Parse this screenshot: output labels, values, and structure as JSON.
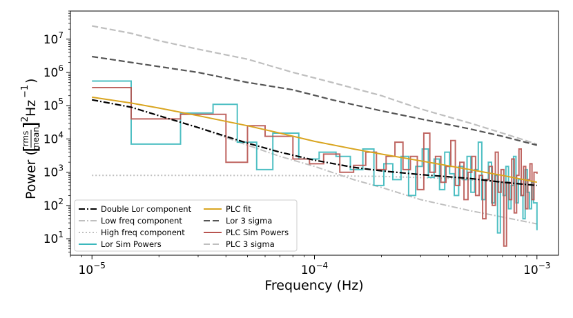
{
  "chart_data": {
    "type": "line",
    "xlabel": "Frequency (Hz)",
    "ylabel": {
      "prefix": "Power (",
      "frac_num": "rms",
      "frac_den": "mean",
      "sup": "2",
      "suffix_unit": "Hz",
      "suffix_exp": "−1",
      "close": ")"
    },
    "x_scale": "log",
    "y_scale": "log",
    "xlim": [
      8e-06,
      0.00125
    ],
    "ylim": [
      3.2,
      70000000.0
    ],
    "grid": false,
    "legend_position": "lower-left",
    "x_ticks": [
      {
        "value": 1e-05,
        "base": "10",
        "exp": "−5"
      },
      {
        "value": 0.0001,
        "base": "10",
        "exp": "−4"
      },
      {
        "value": 0.001,
        "base": "10",
        "exp": "−3"
      }
    ],
    "y_ticks": [
      {
        "value": 10,
        "base": "10",
        "exp": "1"
      },
      {
        "value": 100,
        "base": "10",
        "exp": "2"
      },
      {
        "value": 1000,
        "base": "10",
        "exp": "3"
      },
      {
        "value": 10000,
        "base": "10",
        "exp": "4"
      },
      {
        "value": 100000,
        "base": "10",
        "exp": "5"
      },
      {
        "value": 1000000,
        "base": "10",
        "exp": "6"
      },
      {
        "value": 10000000,
        "base": "10",
        "exp": "7"
      }
    ],
    "legend": [
      {
        "label": "Double Lor component",
        "color": "#000000",
        "style": "dashdot"
      },
      {
        "label": "Low freq component",
        "color": "#bfbfbf",
        "style": "dashdot"
      },
      {
        "label": "High freq component",
        "color": "#bfbfbf",
        "style": "dotted"
      },
      {
        "label": "Lor Sim Powers",
        "color": "#3bb8bd",
        "style": "solid"
      },
      {
        "label": "PLC fit",
        "color": "#d9a520",
        "style": "solid"
      },
      {
        "label": "Lor 3 sigma",
        "color": "#555555",
        "style": "dashed"
      },
      {
        "label": "PLC Sim Powers",
        "color": "#b85450",
        "style": "solid"
      },
      {
        "label": "PLC 3 sigma",
        "color": "#bfbfbf",
        "style": "dashed"
      }
    ],
    "series": [
      {
        "name": "PLC 3 sigma",
        "color": "#bfbfbf",
        "style": "dashed",
        "width": 2.2,
        "kind": "line",
        "x": [
          1e-05,
          1.5e-05,
          2e-05,
          3e-05,
          5e-05,
          8e-05,
          0.00012,
          0.0002,
          0.0003,
          0.0005,
          0.0007,
          0.001
        ],
        "y": [
          25000000,
          15000000,
          9000000,
          5000000,
          2500000,
          1000000,
          500000,
          200000,
          80000,
          30000,
          15000,
          7000
        ]
      },
      {
        "name": "Lor 3 sigma",
        "color": "#555555",
        "style": "dashed",
        "width": 2.2,
        "kind": "line",
        "x": [
          1e-05,
          1.5e-05,
          2e-05,
          3e-05,
          5e-05,
          8e-05,
          0.00012,
          0.0002,
          0.0003,
          0.0005,
          0.0007,
          0.001
        ],
        "y": [
          3000000,
          2000000,
          1500000,
          1000000,
          500000,
          300000,
          150000,
          70000,
          40000,
          20000,
          12000,
          6500
        ]
      },
      {
        "name": "Low freq component",
        "color": "#bfbfbf",
        "style": "dashdot",
        "width": 2,
        "kind": "line",
        "x": [
          1e-05,
          1.5e-05,
          2e-05,
          3e-05,
          5e-05,
          7e-05,
          0.0001,
          0.00015,
          0.0002,
          0.0003,
          0.0005,
          0.0007,
          0.001
        ],
        "y": [
          150000,
          90000,
          50000,
          22000,
          6500,
          3000,
          1500,
          600,
          350,
          150,
          70,
          45,
          28
        ]
      },
      {
        "name": "High freq component",
        "color": "#bfbfbf",
        "style": "dotted",
        "width": 2,
        "kind": "line",
        "x": [
          1e-05,
          3e-05,
          0.0001,
          0.0002,
          0.0004,
          0.0007,
          0.001
        ],
        "y": [
          800,
          800,
          790,
          750,
          650,
          520,
          420
        ]
      },
      {
        "name": "Lor Sim Powers",
        "color": "#3bb8bd",
        "style": "solid",
        "width": 2,
        "kind": "step",
        "x": [
          1e-05,
          1.5e-05,
          2.5e-05,
          3.5e-05,
          4.5e-05,
          5.5e-05,
          6.5e-05,
          8.5e-05,
          0.000105,
          0.000125,
          0.000145,
          0.000165,
          0.000185,
          0.000205,
          0.000225,
          0.000245,
          0.000265,
          0.000285,
          0.000305,
          0.000325,
          0.000345,
          0.000365,
          0.000385,
          0.000405,
          0.000425,
          0.000445,
          0.000465,
          0.000485,
          0.000505,
          0.000525,
          0.000545,
          0.000565,
          0.000585,
          0.000605,
          0.000625,
          0.000645,
          0.000665,
          0.000685,
          0.000705,
          0.000725,
          0.000745,
          0.000765,
          0.000785,
          0.000805,
          0.000825,
          0.000845,
          0.000865,
          0.000885,
          0.000905,
          0.000925,
          0.000945,
          0.000965,
          0.001
        ],
        "y": [
          550000,
          7000,
          60000,
          110000,
          8000,
          1200,
          15000,
          2500,
          4000,
          3000,
          1200,
          5000,
          400,
          1800,
          600,
          3000,
          200,
          1500,
          5000,
          700,
          2500,
          300,
          4000,
          900,
          200,
          1500,
          600,
          3000,
          250,
          1200,
          8000,
          150,
          600,
          2000,
          120,
          800,
          15,
          500,
          200,
          1500,
          80,
          400,
          3000,
          120,
          600,
          200,
          40,
          1200,
          250,
          80,
          500,
          120,
          18
        ]
      },
      {
        "name": "PLC Sim Powers",
        "color": "#b85450",
        "style": "solid",
        "width": 2,
        "kind": "step",
        "x": [
          1e-05,
          1.5e-05,
          2.5e-05,
          4e-05,
          5e-05,
          6e-05,
          8e-05,
          9.5e-05,
          0.00011,
          0.00013,
          0.00015,
          0.00017,
          0.00019,
          0.00021,
          0.00023,
          0.00025,
          0.00027,
          0.00029,
          0.00031,
          0.00033,
          0.00035,
          0.00037,
          0.00039,
          0.00041,
          0.00043,
          0.00045,
          0.00047,
          0.00049,
          0.00051,
          0.00053,
          0.00055,
          0.00057,
          0.00059,
          0.00061,
          0.00063,
          0.00065,
          0.00067,
          0.00069,
          0.00071,
          0.00073,
          0.00075,
          0.00077,
          0.00079,
          0.00081,
          0.00083,
          0.00085,
          0.00087,
          0.00089,
          0.00091,
          0.00093,
          0.00095,
          0.00097,
          0.001
        ],
        "y": [
          350000,
          40000,
          55000,
          2000,
          25000,
          12000,
          2500,
          1800,
          3500,
          1000,
          1600,
          4000,
          1200,
          3000,
          8000,
          1200,
          3000,
          300,
          15000,
          1000,
          3000,
          500,
          1500,
          9000,
          400,
          2000,
          150,
          1000,
          3000,
          200,
          800,
          40,
          600,
          1500,
          100,
          4000,
          250,
          1200,
          6,
          500,
          150,
          2500,
          60,
          800,
          5000,
          200,
          1500,
          80,
          600,
          1800,
          150,
          1000,
          900
        ]
      },
      {
        "name": "Double Lor component",
        "color": "#000000",
        "style": "dashdot",
        "width": 2.2,
        "kind": "line",
        "x": [
          1e-05,
          1.5e-05,
          2e-05,
          3e-05,
          5e-05,
          7e-05,
          0.0001,
          0.00015,
          0.0002,
          0.0003,
          0.0005,
          0.0007,
          0.001
        ],
        "y": [
          150000,
          90000,
          50000,
          22000,
          7500,
          4000,
          2300,
          1400,
          1100,
          850,
          650,
          500,
          400
        ]
      },
      {
        "name": "PLC fit",
        "color": "#d9a520",
        "style": "solid",
        "width": 2,
        "kind": "line",
        "x": [
          1e-05,
          1.5e-05,
          2e-05,
          3e-05,
          5e-05,
          7e-05,
          0.0001,
          0.00015,
          0.0002,
          0.0003,
          0.0005,
          0.0007,
          0.001
        ],
        "y": [
          180000,
          120000,
          85000,
          50000,
          25000,
          15000,
          8500,
          5000,
          3500,
          2200,
          1200,
          800,
          500
        ]
      }
    ]
  }
}
